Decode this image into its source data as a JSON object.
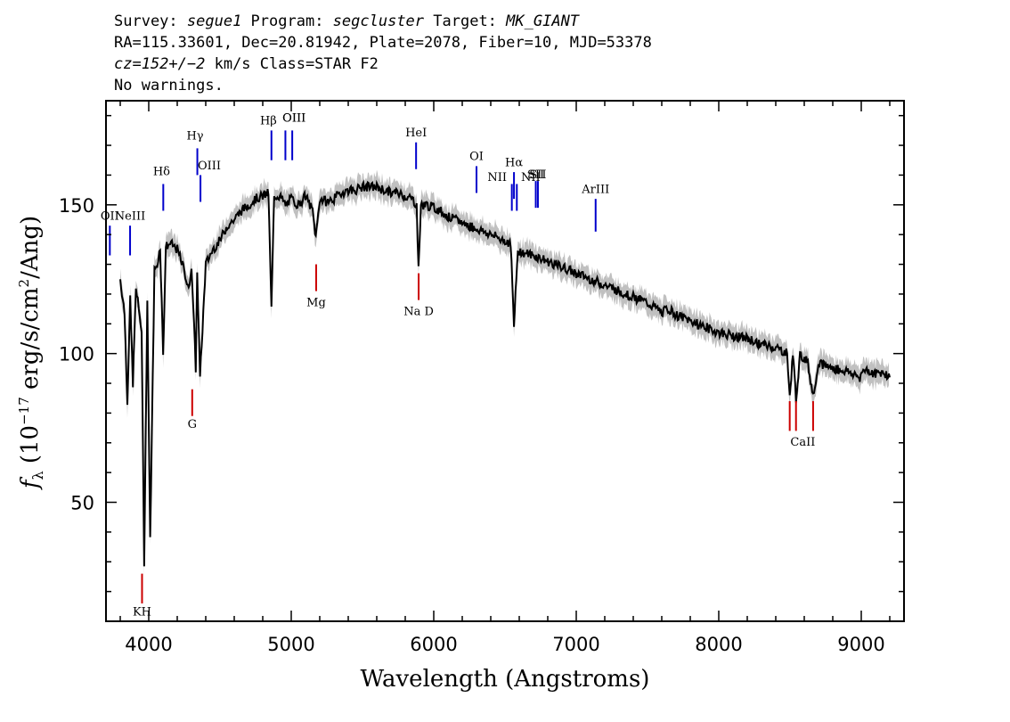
{
  "header": {
    "line1": [
      {
        "text": "Survey: ",
        "italic": false
      },
      {
        "text": "segue1",
        "italic": true
      },
      {
        "text": " Program: ",
        "italic": false
      },
      {
        "text": "segcluster",
        "italic": true
      },
      {
        "text": " Target: ",
        "italic": false
      },
      {
        "text": "MK_GIANT",
        "italic": true
      }
    ],
    "line2": "RA=115.33601, Dec=20.81942, Plate=2078, Fiber=10, MJD=53378",
    "line3_prefix": "cz=152+/−2",
    "line3_rest": " km/s Class=STAR F2",
    "line4": "No warnings."
  },
  "chart_data": {
    "type": "line",
    "xlabel": "Wavelength (Angstroms)",
    "ylabel": "f_λ (10^-17 erg/s/cm²/Ang)",
    "ylabel_parts": {
      "f": "f",
      "sub": "λ",
      "pre": " (10",
      "exp1": "−17",
      "mid": " erg/s/cm",
      "exp2": "2",
      "post": "/Ang)"
    },
    "xlim": [
      3700,
      9300
    ],
    "ylim": [
      10,
      185
    ],
    "x_ticks": [
      4000,
      5000,
      6000,
      7000,
      8000,
      9000
    ],
    "y_ticks": [
      50,
      100,
      150
    ],
    "series": [
      {
        "x": [
          3800,
          3830,
          3850,
          3870,
          3889,
          3910,
          3930,
          3950,
          3968,
          3990,
          4010,
          4040,
          4060,
          4080,
          4101,
          4120,
          4150,
          4200,
          4250,
          4280,
          4300,
          4330,
          4340,
          4360,
          4400,
          4450,
          4500,
          4550,
          4600,
          4650,
          4700,
          4750,
          4800,
          4840,
          4861,
          4880,
          4920,
          4960,
          5000,
          5050,
          5100,
          5150,
          5172,
          5200,
          5250,
          5300,
          5350,
          5400,
          5450,
          5500,
          5550,
          5600,
          5650,
          5700,
          5750,
          5800,
          5850,
          5880,
          5893,
          5910,
          5950,
          6000,
          6050,
          6100,
          6150,
          6200,
          6250,
          6300,
          6350,
          6400,
          6450,
          6500,
          6540,
          6563,
          6590,
          6620,
          6700,
          6800,
          6900,
          7000,
          7100,
          7200,
          7300,
          7400,
          7500,
          7600,
          7650,
          7700,
          7800,
          7900,
          8000,
          8100,
          8200,
          8300,
          8400,
          8480,
          8498,
          8520,
          8542,
          8570,
          8620,
          8662,
          8700,
          8800,
          8900,
          8990,
          9020,
          9100,
          9150,
          9200
        ],
        "y": [
          125,
          114,
          84,
          118,
          90,
          122,
          115,
          108,
          30,
          118,
          37,
          128,
          130,
          136,
          100,
          136,
          137,
          135,
          128,
          121,
          130,
          95,
          128,
          92,
          130,
          135,
          138,
          143,
          145,
          148,
          150,
          152,
          153,
          154,
          115,
          153,
          153,
          150,
          152,
          150,
          153,
          148,
          139,
          152,
          151,
          152,
          154,
          155,
          155,
          156,
          156,
          156,
          155,
          154,
          154,
          153,
          152,
          150,
          128,
          150,
          150,
          149,
          148,
          146,
          145,
          144,
          143,
          142,
          141,
          140,
          139,
          138,
          137,
          109,
          135,
          134,
          133,
          131,
          129,
          127,
          125,
          123,
          121,
          119,
          117,
          114,
          115,
          113,
          111,
          109,
          107,
          106,
          105,
          103,
          102,
          100,
          85,
          100,
          85,
          99,
          98,
          86,
          97,
          95,
          94,
          92,
          95,
          93,
          94,
          92
        ],
        "color": "#000000",
        "error_color": "#c0c0c0"
      }
    ],
    "lines": [
      {
        "label": "OII",
        "wave": 3727,
        "y0": 133,
        "y1": 143,
        "lx": 3727,
        "ly": 145,
        "color": "#0000cc"
      },
      {
        "label": "NeIII",
        "wave": 3869,
        "y0": 133,
        "y1": 143,
        "lx": 3869,
        "ly": 145,
        "color": "#0000cc"
      },
      {
        "label": "Hδ",
        "wave": 4102,
        "y0": 148,
        "y1": 157,
        "lx": 4090,
        "ly": 160,
        "color": "#0000cc"
      },
      {
        "label": "Hγ",
        "wave": 4341,
        "y0": 160,
        "y1": 169,
        "lx": 4325,
        "ly": 172,
        "color": "#0000cc"
      },
      {
        "label": "OIII",
        "wave": 4363,
        "y0": 151,
        "y1": 160,
        "lx": 4425,
        "ly": 162,
        "color": "#0000cc"
      },
      {
        "label": "Hβ",
        "wave": 4861,
        "y0": 165,
        "y1": 175,
        "lx": 4840,
        "ly": 177,
        "color": "#0000cc"
      },
      {
        "label": "OIII",
        "wave": 4959,
        "y0": 165,
        "y1": 175,
        "lx": 5020,
        "ly": 178,
        "color": "#0000cc"
      },
      {
        "label": "OIII",
        "wave": 5007,
        "y0": 165,
        "y1": 175,
        "lx": 5020,
        "ly": 178,
        "color": "#0000cc"
      },
      {
        "label": "HeI",
        "wave": 5876,
        "y0": 162,
        "y1": 171,
        "lx": 5876,
        "ly": 173,
        "color": "#0000cc"
      },
      {
        "label": "OI",
        "wave": 6300,
        "y0": 154,
        "y1": 163,
        "lx": 6300,
        "ly": 165,
        "color": "#0000cc"
      },
      {
        "label": "NII",
        "wave": 6548,
        "y0": 148,
        "y1": 157,
        "lx": 6445,
        "ly": 158,
        "color": "#0000cc"
      },
      {
        "label": "Hα",
        "wave": 6563,
        "y0": 152,
        "y1": 161,
        "lx": 6563,
        "ly": 163,
        "color": "#0000cc"
      },
      {
        "label": "NII",
        "wave": 6583,
        "y0": 148,
        "y1": 157,
        "lx": 6680,
        "ly": 158,
        "color": "#0000cc"
      },
      {
        "label": "SII",
        "wave": 6716,
        "y0": 149,
        "y1": 158,
        "lx": 6716,
        "ly": 159,
        "color": "#0000cc"
      },
      {
        "label": "SII",
        "wave": 6731,
        "y0": 149,
        "y1": 158,
        "lx": 6731,
        "ly": 159,
        "color": "#0000cc"
      },
      {
        "label": "ArIII",
        "wave": 7136,
        "y0": 141,
        "y1": 152,
        "lx": 7136,
        "ly": 154,
        "color": "#0000cc"
      },
      {
        "label": "Mg",
        "wave": 5175,
        "y0": 121,
        "y1": 130,
        "lx": 5175,
        "ly": 116,
        "color": "#cc0000"
      },
      {
        "label": "Na D",
        "wave": 5894,
        "y0": 118,
        "y1": 127,
        "lx": 5894,
        "ly": 113,
        "color": "#cc0000"
      },
      {
        "label": "G",
        "wave": 4305,
        "y0": 79,
        "y1": 88,
        "lx": 4305,
        "ly": 75,
        "color": "#cc0000"
      },
      {
        "label": "KH",
        "wave": 3953,
        "y0": 16,
        "y1": 26,
        "lx": 3953,
        "ly": 12,
        "color": "#cc0000"
      },
      {
        "label": "CaII",
        "wave": 8498,
        "y0": 74,
        "y1": 84,
        "lx": 8590,
        "ly": 69,
        "color": "#cc0000"
      },
      {
        "label": "",
        "wave": 8542,
        "y0": 74,
        "y1": 84,
        "lx": 0,
        "ly": 0,
        "color": "#cc0000"
      },
      {
        "label": "",
        "wave": 8662,
        "y0": 74,
        "y1": 84,
        "lx": 0,
        "ly": 0,
        "color": "#cc0000"
      }
    ]
  }
}
